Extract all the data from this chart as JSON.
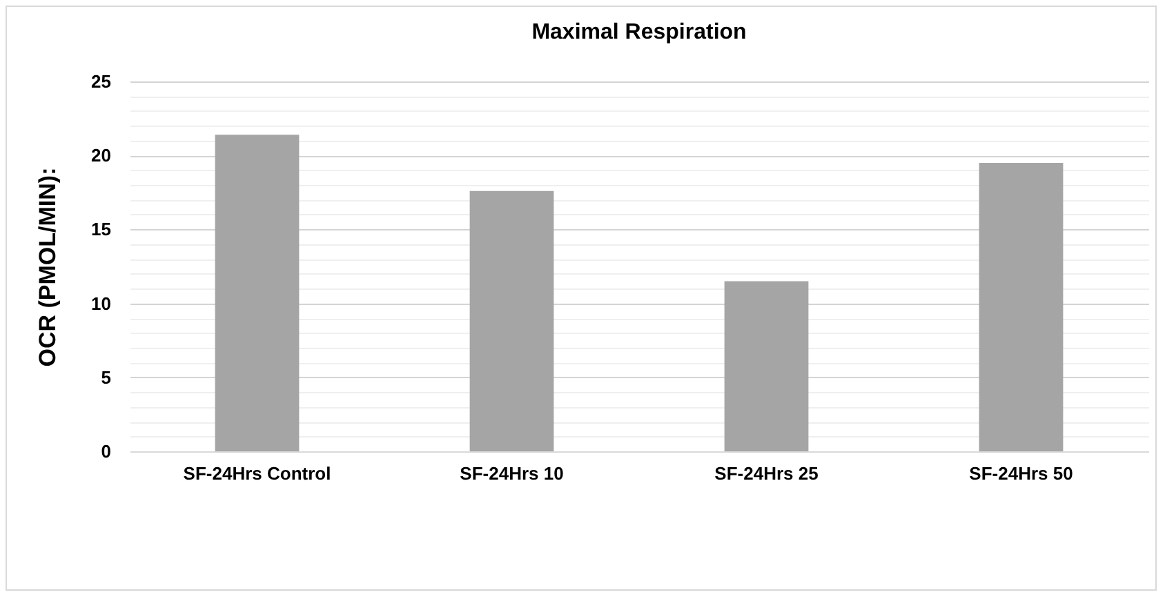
{
  "chart_data": {
    "type": "bar",
    "title": "Maximal Respiration",
    "ylabel": "OCR (PMOL/MIN):",
    "categories": [
      "SF-24Hrs Control",
      "SF-24Hrs 10",
      "SF-24Hrs 25",
      "SF-24Hrs 50"
    ],
    "values": [
      21.4,
      17.6,
      11.5,
      19.5
    ],
    "color": "#a5a5a5",
    "ylim": [
      0,
      25
    ],
    "yticks": [
      0,
      {
        "value": 1,
        "label": null
      },
      {
        "value": 2,
        "label": null
      },
      {
        "value": 3,
        "label": null
      },
      {
        "value": 4,
        "label": null
      },
      5,
      {
        "value": 6,
        "label": null
      },
      {
        "value": 7,
        "label": null
      },
      {
        "value": 8,
        "label": null
      },
      {
        "value": 9,
        "label": null
      },
      10,
      {
        "value": 11,
        "label": null
      },
      {
        "value": 12,
        "label": null
      },
      {
        "value": 13,
        "label": null
      },
      {
        "value": 14,
        "label": null
      },
      15,
      {
        "value": 16,
        "label": null
      },
      {
        "value": 17,
        "label": null
      },
      {
        "value": 18,
        "label": null
      },
      {
        "value": 19,
        "label": null
      },
      20,
      {
        "value": 21,
        "label": null
      },
      {
        "value": 22,
        "label": null
      },
      {
        "value": 23,
        "label": null
      },
      {
        "value": 24,
        "label": null
      },
      25
    ],
    "grid": "y"
  }
}
